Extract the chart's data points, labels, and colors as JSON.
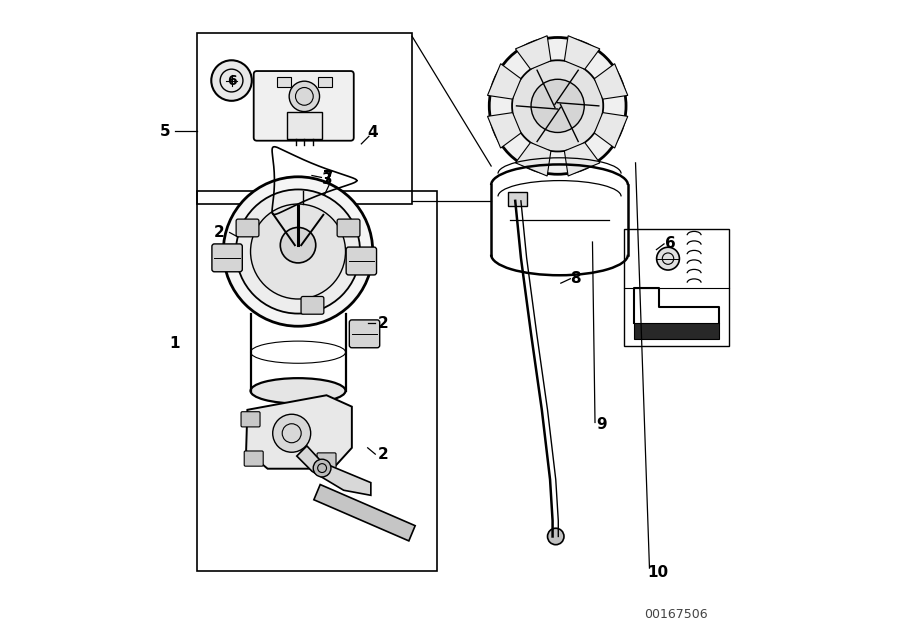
{
  "bg_color": "#ffffff",
  "line_color": "#000000",
  "label_color": "#000000",
  "watermark": "00167506",
  "fig_width": 9.0,
  "fig_height": 6.36
}
